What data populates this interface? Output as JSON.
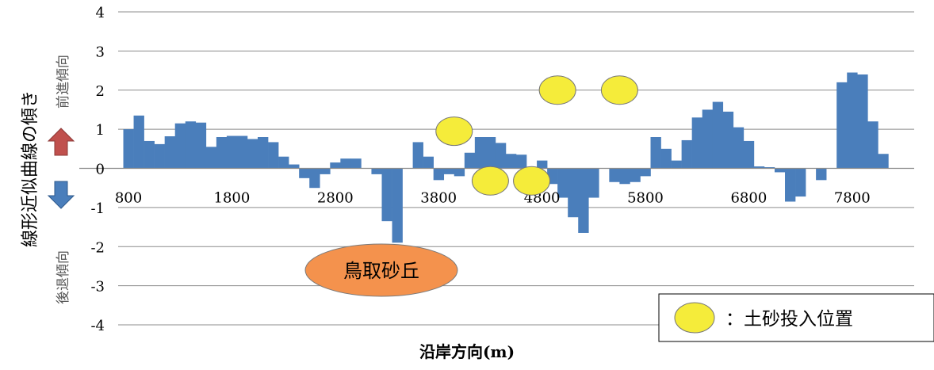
{
  "chart_data": {
    "type": "bar",
    "xlabel": "沿岸方向(m)",
    "ylabel": "線形近似曲線の傾き",
    "ylim": [
      -4,
      4
    ],
    "yticks": [
      4,
      3,
      2,
      1,
      0,
      -1,
      -2,
      -3,
      -4
    ],
    "xlim": [
      700,
      8400
    ],
    "xticks": [
      800,
      1800,
      2800,
      3800,
      4800,
      5800,
      6800,
      7800
    ],
    "bar_color": "#4a7ebb",
    "grid": "horizontal",
    "x": [
      800,
      900,
      1000,
      1100,
      1200,
      1300,
      1400,
      1500,
      1600,
      1700,
      1800,
      1900,
      2000,
      2100,
      2200,
      2300,
      2400,
      2500,
      2600,
      2700,
      2800,
      2900,
      3000,
      3100,
      3200,
      3300,
      3400,
      3500,
      3600,
      3700,
      3800,
      3900,
      4000,
      4100,
      4200,
      4300,
      4400,
      4500,
      4600,
      4700,
      4800,
      4900,
      5000,
      5100,
      5200,
      5300,
      5400,
      5500,
      5600,
      5700,
      5800,
      5900,
      6000,
      6100,
      6200,
      6300,
      6400,
      6500,
      6600,
      6700,
      6800,
      6900,
      7000,
      7100,
      7200,
      7300,
      7400,
      7500,
      7600,
      7700,
      7800,
      7900,
      8000,
      8100,
      8200
    ],
    "values": [
      1.0,
      1.35,
      0.7,
      0.62,
      0.82,
      1.15,
      1.2,
      1.17,
      0.55,
      0.8,
      0.83,
      0.83,
      0.75,
      0.8,
      0.67,
      0.3,
      0.1,
      -0.25,
      -0.5,
      -0.15,
      0.15,
      0.25,
      0.25,
      0.0,
      -0.15,
      -1.35,
      -1.9,
      0.0,
      0.67,
      0.3,
      -0.3,
      -0.15,
      -0.2,
      0.4,
      0.8,
      0.8,
      0.65,
      0.37,
      0.35,
      0.0,
      0.2,
      -0.4,
      -0.75,
      -1.25,
      -1.65,
      -0.75,
      0.0,
      -0.35,
      -0.4,
      -0.35,
      -0.2,
      0.8,
      0.5,
      0.2,
      0.72,
      1.3,
      1.5,
      1.7,
      1.45,
      1.05,
      0.7,
      0.05,
      0.03,
      -0.1,
      -0.85,
      -0.72,
      0.0,
      -0.3,
      0.0,
      2.2,
      2.45,
      2.4,
      1.2,
      0.37,
      0.0
    ],
    "annotations": {
      "advance": "前進傾向",
      "retreat": "後退傾向",
      "dune_label": "鳥取砂丘",
      "dune_color": "#f4924d",
      "marker_color": "#f5ec3a",
      "up_arrow_color": "#c0504d",
      "down_arrow_color": "#4a7ebb",
      "sand_points": [
        {
          "x": 3950,
          "y": 0.95
        },
        {
          "x": 4300,
          "y": -0.32
        },
        {
          "x": 4700,
          "y": -0.32
        },
        {
          "x": 4950,
          "y": 2.0
        },
        {
          "x": 5550,
          "y": 2.0
        }
      ]
    },
    "legend": {
      "label": "：土砂投入位置",
      "position": "bottom-right"
    }
  }
}
